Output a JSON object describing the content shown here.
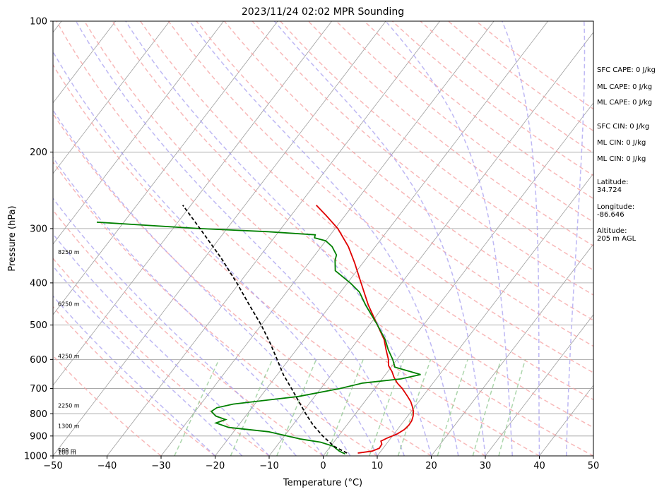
{
  "chart_data": {
    "type": "line",
    "title": "2023/11/24 02:02 MPR Sounding",
    "xlabel": "Temperature (°C)",
    "ylabel": "Pressure (hPa)",
    "xlim": [
      -50,
      50
    ],
    "ylim": [
      1000,
      100
    ],
    "yscale": "log",
    "skew": "skew-T log-P",
    "grid": true,
    "x_ticks": [
      -50,
      -40,
      -30,
      -20,
      -10,
      0,
      10,
      20,
      30,
      40,
      50
    ],
    "y_ticks": [
      1000,
      900,
      800,
      700,
      600,
      500,
      400,
      300,
      200,
      100
    ],
    "series": [
      {
        "name": "",
        "role": "temperature",
        "color": "#e00000",
        "points": [
          [
            985,
            6.0
          ],
          [
            975,
            8.4
          ],
          [
            960,
            9.3
          ],
          [
            940,
            9.2
          ],
          [
            925,
            8.6
          ],
          [
            910,
            9.3
          ],
          [
            890,
            10.6
          ],
          [
            870,
            11.3
          ],
          [
            850,
            11.5
          ],
          [
            830,
            11.4
          ],
          [
            810,
            11.0
          ],
          [
            790,
            10.4
          ],
          [
            770,
            9.5
          ],
          [
            750,
            8.5
          ],
          [
            730,
            7.2
          ],
          [
            700,
            5.1
          ],
          [
            680,
            3.4
          ],
          [
            660,
            2.0
          ],
          [
            640,
            0.8
          ],
          [
            620,
            -0.7
          ],
          [
            600,
            -1.6
          ],
          [
            570,
            -3.4
          ],
          [
            540,
            -5.2
          ],
          [
            500,
            -8.5
          ],
          [
            450,
            -13.0
          ],
          [
            400,
            -17.5
          ],
          [
            360,
            -21.5
          ],
          [
            330,
            -25.0
          ],
          [
            300,
            -29.5
          ],
          [
            280,
            -33.5
          ],
          [
            265,
            -36.8
          ]
        ]
      },
      {
        "name": "",
        "role": "dewpoint",
        "color": "#008000",
        "points": [
          [
            990,
            3.8
          ],
          [
            975,
            2.3
          ],
          [
            960,
            1.2
          ],
          [
            950,
            0.5
          ],
          [
            930,
            -2.4
          ],
          [
            915,
            -6.5
          ],
          [
            900,
            -9.5
          ],
          [
            880,
            -13.5
          ],
          [
            860,
            -21.5
          ],
          [
            840,
            -24.5
          ],
          [
            825,
            -23.2
          ],
          [
            810,
            -25.5
          ],
          [
            790,
            -27.0
          ],
          [
            775,
            -26.5
          ],
          [
            760,
            -24.0
          ],
          [
            730,
            -13.0
          ],
          [
            700,
            -6.5
          ],
          [
            680,
            -3.0
          ],
          [
            665,
            3.5
          ],
          [
            650,
            6.5
          ],
          [
            625,
            0.7
          ],
          [
            600,
            -0.8
          ],
          [
            570,
            -3.0
          ],
          [
            540,
            -5.0
          ],
          [
            500,
            -8.5
          ],
          [
            450,
            -13.5
          ],
          [
            420,
            -16.5
          ],
          [
            400,
            -19.5
          ],
          [
            375,
            -24.0
          ],
          [
            355,
            -25.5
          ],
          [
            345,
            -26.0
          ],
          [
            330,
            -28.0
          ],
          [
            320,
            -30.0
          ],
          [
            315,
            -32.5
          ],
          [
            310,
            -32.8
          ],
          [
            305,
            -42.0
          ],
          [
            300,
            -55.0
          ],
          [
            295,
            -65.0
          ],
          [
            290,
            -75.0
          ]
        ]
      },
      {
        "name": "",
        "role": "parcel",
        "color": "#000000",
        "style": "dashed",
        "points": [
          [
            985,
            4.0
          ],
          [
            950,
            0.6
          ],
          [
            900,
            -2.9
          ],
          [
            850,
            -6.2
          ],
          [
            800,
            -9.2
          ],
          [
            750,
            -12.2
          ],
          [
            700,
            -15.4
          ],
          [
            650,
            -18.9
          ],
          [
            600,
            -22.2
          ],
          [
            550,
            -25.8
          ],
          [
            500,
            -30.0
          ],
          [
            450,
            -35.0
          ],
          [
            400,
            -40.5
          ],
          [
            350,
            -47.0
          ],
          [
            300,
            -55.0
          ],
          [
            265,
            -61.5
          ]
        ]
      }
    ],
    "height_labels": [
      {
        "p": 1000,
        "text": "100 m"
      },
      {
        "p": 988,
        "text": "500 m"
      },
      {
        "p": 870,
        "text": "1300 m"
      },
      {
        "p": 780,
        "text": "2250 m"
      },
      {
        "p": 600,
        "text": "4250 m"
      },
      {
        "p": 455,
        "text": "6250 m"
      },
      {
        "p": 346,
        "text": "8250 m"
      }
    ],
    "annotations": [
      {
        "text": "SFC CAPE: 0 J/kg"
      },
      {
        "text": "ML CAPE: 0 J/kg"
      },
      {
        "text": "ML CAPE: 0 J/kg"
      },
      {
        "text": "SFC CIN: 0 J/kg"
      },
      {
        "text": "ML CIN: 0 J/kg"
      },
      {
        "text": "ML CIN: 0 J/kg"
      },
      {
        "text": "Latitude:",
        "text2": "34.724"
      },
      {
        "text": "Longitude:",
        "text2": "-86.646"
      },
      {
        "text": "Altitude:",
        "text2": "205 m AGL"
      }
    ],
    "colors": {
      "temperature": "#e00000",
      "dewpoint": "#008000",
      "parcel": "#000000",
      "dry_adiabat": "#f5a0a0",
      "moist_adiabat": "#a8a0f0",
      "mixing_ratio": "#90c890",
      "isotherm": "#9e9e9e",
      "isobar": "#9e9e9e"
    }
  }
}
